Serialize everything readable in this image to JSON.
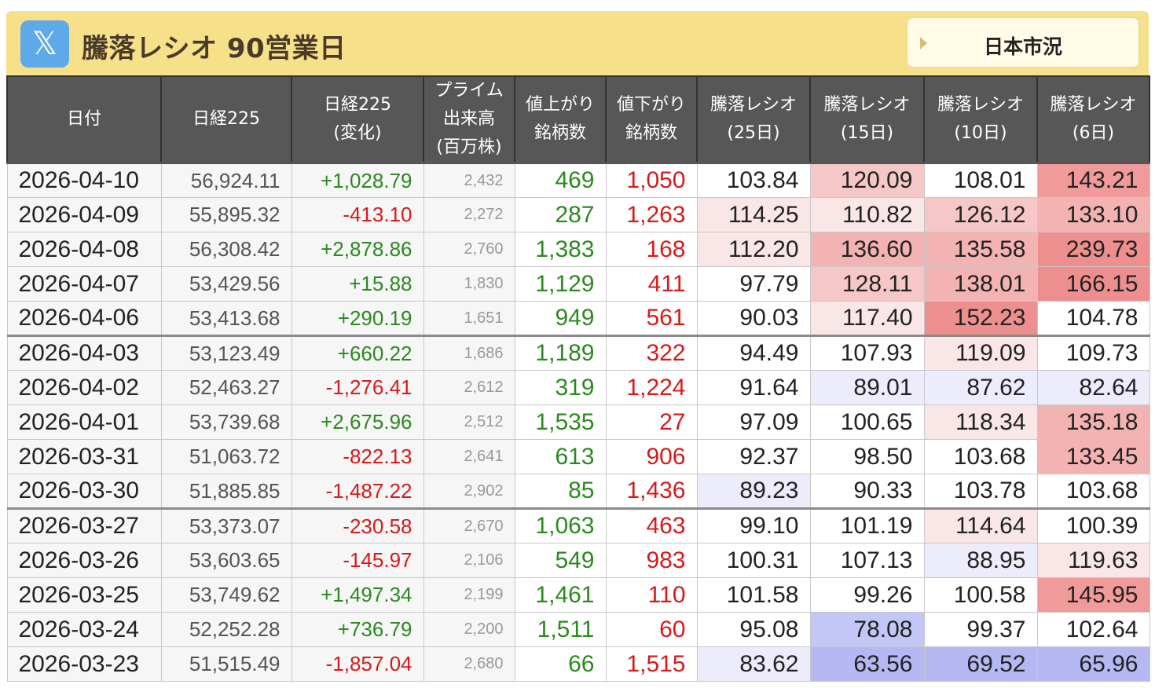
{
  "header": {
    "title": "騰落レシオ 90営業日",
    "button_label": "日本市況",
    "x_icon_glyph": "𝕏"
  },
  "colors": {
    "header_bar": "#f7e08a",
    "positive": "#2a8a1e",
    "negative": "#d41b1b",
    "hot": "#ee8f8f",
    "cool": "#b6b8f4"
  },
  "columns": [
    {
      "label": "日付"
    },
    {
      "label": "日経225"
    },
    {
      "label": "日経225\n(変化)"
    },
    {
      "label": "プライム\n出来高\n(百万株)"
    },
    {
      "label": "値上がり\n銘柄数"
    },
    {
      "label": "値下がり\n銘柄数"
    },
    {
      "label": "騰落レシオ\n(25日)"
    },
    {
      "label": "騰落レシオ\n(15日)"
    },
    {
      "label": "騰落レシオ\n(10日)"
    },
    {
      "label": "騰落レシオ\n(6日)"
    }
  ],
  "rows": [
    {
      "date": "2026-04-10",
      "n225": "56,924.11",
      "change": "+1,028.79",
      "volume": "2,432",
      "adv": "469",
      "dec": "1,050",
      "r25": "103.84",
      "r15": "120.09",
      "r10": "108.01",
      "r6": "143.21"
    },
    {
      "date": "2026-04-09",
      "n225": "55,895.32",
      "change": "-413.10",
      "volume": "2,272",
      "adv": "287",
      "dec": "1,263",
      "r25": "114.25",
      "r15": "110.82",
      "r10": "126.12",
      "r6": "133.10"
    },
    {
      "date": "2026-04-08",
      "n225": "56,308.42",
      "change": "+2,878.86",
      "volume": "2,760",
      "adv": "1,383",
      "dec": "168",
      "r25": "112.20",
      "r15": "136.60",
      "r10": "135.58",
      "r6": "239.73"
    },
    {
      "date": "2026-04-07",
      "n225": "53,429.56",
      "change": "+15.88",
      "volume": "1,830",
      "adv": "1,129",
      "dec": "411",
      "r25": "97.79",
      "r15": "128.11",
      "r10": "138.01",
      "r6": "166.15"
    },
    {
      "date": "2026-04-06",
      "n225": "53,413.68",
      "change": "+290.19",
      "volume": "1,651",
      "adv": "949",
      "dec": "561",
      "r25": "90.03",
      "r15": "117.40",
      "r10": "152.23",
      "r6": "104.78"
    },
    {
      "date": "2026-04-03",
      "n225": "53,123.49",
      "change": "+660.22",
      "volume": "1,686",
      "adv": "1,189",
      "dec": "322",
      "r25": "94.49",
      "r15": "107.93",
      "r10": "119.09",
      "r6": "109.73"
    },
    {
      "date": "2026-04-02",
      "n225": "52,463.27",
      "change": "-1,276.41",
      "volume": "2,612",
      "adv": "319",
      "dec": "1,224",
      "r25": "91.64",
      "r15": "89.01",
      "r10": "87.62",
      "r6": "82.64"
    },
    {
      "date": "2026-04-01",
      "n225": "53,739.68",
      "change": "+2,675.96",
      "volume": "2,512",
      "adv": "1,535",
      "dec": "27",
      "r25": "97.09",
      "r15": "100.65",
      "r10": "118.34",
      "r6": "135.18"
    },
    {
      "date": "2026-03-31",
      "n225": "51,063.72",
      "change": "-822.13",
      "volume": "2,641",
      "adv": "613",
      "dec": "906",
      "r25": "92.37",
      "r15": "98.50",
      "r10": "103.68",
      "r6": "133.45"
    },
    {
      "date": "2026-03-30",
      "n225": "51,885.85",
      "change": "-1,487.22",
      "volume": "2,902",
      "adv": "85",
      "dec": "1,436",
      "r25": "89.23",
      "r15": "90.33",
      "r10": "103.78",
      "r6": "103.68"
    },
    {
      "date": "2026-03-27",
      "n225": "53,373.07",
      "change": "-230.58",
      "volume": "2,670",
      "adv": "1,063",
      "dec": "463",
      "r25": "99.10",
      "r15": "101.19",
      "r10": "114.64",
      "r6": "100.39"
    },
    {
      "date": "2026-03-26",
      "n225": "53,603.65",
      "change": "-145.97",
      "volume": "2,106",
      "adv": "549",
      "dec": "983",
      "r25": "100.31",
      "r15": "107.13",
      "r10": "88.95",
      "r6": "119.63"
    },
    {
      "date": "2026-03-25",
      "n225": "53,749.62",
      "change": "+1,497.34",
      "volume": "2,199",
      "adv": "1,461",
      "dec": "110",
      "r25": "101.58",
      "r15": "99.26",
      "r10": "100.58",
      "r6": "145.95"
    },
    {
      "date": "2026-03-24",
      "n225": "52,252.28",
      "change": "+736.79",
      "volume": "2,200",
      "adv": "1,511",
      "dec": "60",
      "r25": "95.08",
      "r15": "78.08",
      "r10": "99.37",
      "r6": "102.64"
    },
    {
      "date": "2026-03-23",
      "n225": "51,515.49",
      "change": "-1,857.04",
      "volume": "2,680",
      "adv": "66",
      "dec": "1,515",
      "r25": "83.62",
      "r15": "63.56",
      "r10": "69.52",
      "r6": "65.96"
    }
  ],
  "week_starts": [
    "2026-04-03",
    "2026-03-27"
  ]
}
